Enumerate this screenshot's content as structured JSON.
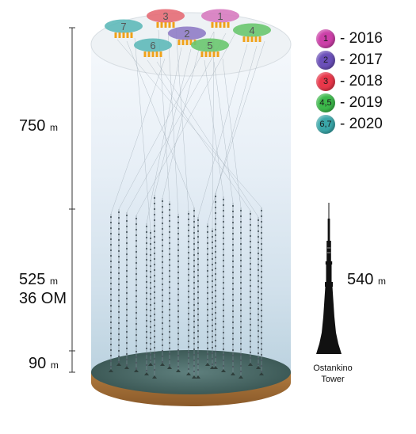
{
  "depth_labels": {
    "upper": {
      "value": "750",
      "unit": "m"
    },
    "middle": {
      "value": "525",
      "unit": "m",
      "sub": "36 OM"
    },
    "lower": {
      "value": "90",
      "unit": "m"
    }
  },
  "legend": [
    {
      "label": "1",
      "year": "- 2016",
      "color": "#cc3fa8"
    },
    {
      "label": "2",
      "year": "- 2017",
      "color": "#6a4fb8"
    },
    {
      "label": "3",
      "year": "- 2018",
      "color": "#e8374a"
    },
    {
      "label": "4,5",
      "year": "- 2019",
      "color": "#3cb84a"
    },
    {
      "label": "6,7",
      "year": "- 2020",
      "color": "#3aa6a8"
    }
  ],
  "clusters": [
    {
      "label": "1",
      "color": "#d77bc0"
    },
    {
      "label": "2",
      "color": "#8f7cc7"
    },
    {
      "label": "3",
      "color": "#e56b76"
    },
    {
      "label": "4",
      "color": "#69c76f"
    },
    {
      "label": "5",
      "color": "#69c76f"
    },
    {
      "label": "6",
      "color": "#5eb9b9"
    },
    {
      "label": "7",
      "color": "#5eb9b9"
    }
  ],
  "tower": {
    "height_value": "540",
    "unit": "m",
    "name_line1": "Ostankino",
    "name_line2": "Tower"
  }
}
